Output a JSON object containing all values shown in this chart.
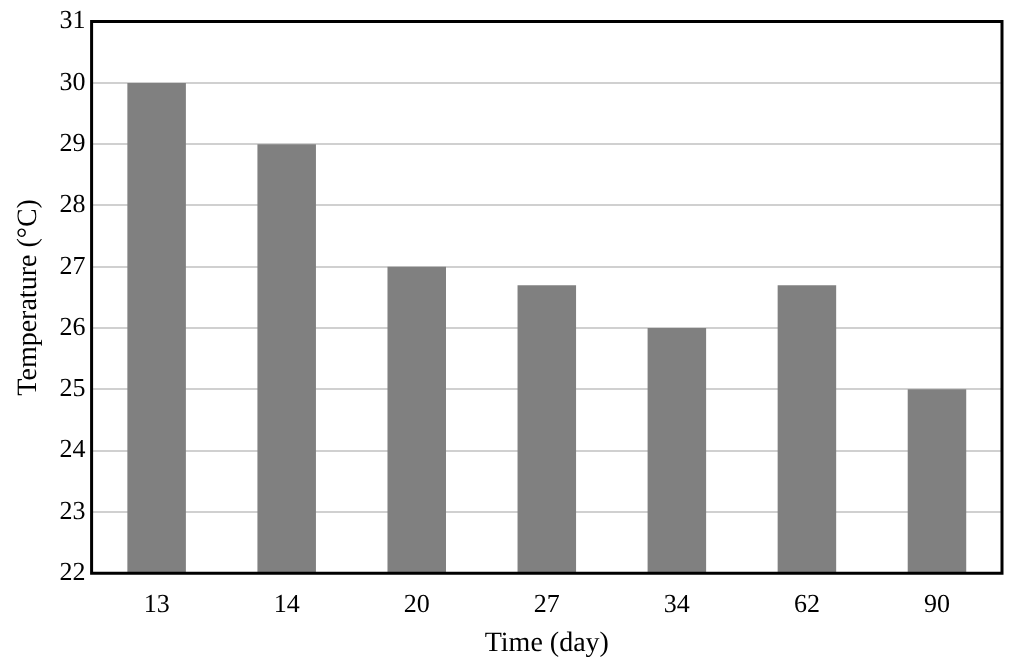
{
  "chart_data": {
    "type": "bar",
    "xlabel": "Time (day)",
    "ylabel": "Temperature (°C)",
    "categories": [
      "13",
      "14",
      "20",
      "27",
      "34",
      "62",
      "90"
    ],
    "values": [
      30,
      29,
      27,
      26.7,
      26,
      26.7,
      25
    ],
    "color": "#808080",
    "ylim": [
      22,
      31
    ],
    "yticks": [
      22,
      23,
      24,
      25,
      26,
      27,
      28,
      29,
      30,
      31
    ],
    "grid": "y",
    "legend": false
  }
}
